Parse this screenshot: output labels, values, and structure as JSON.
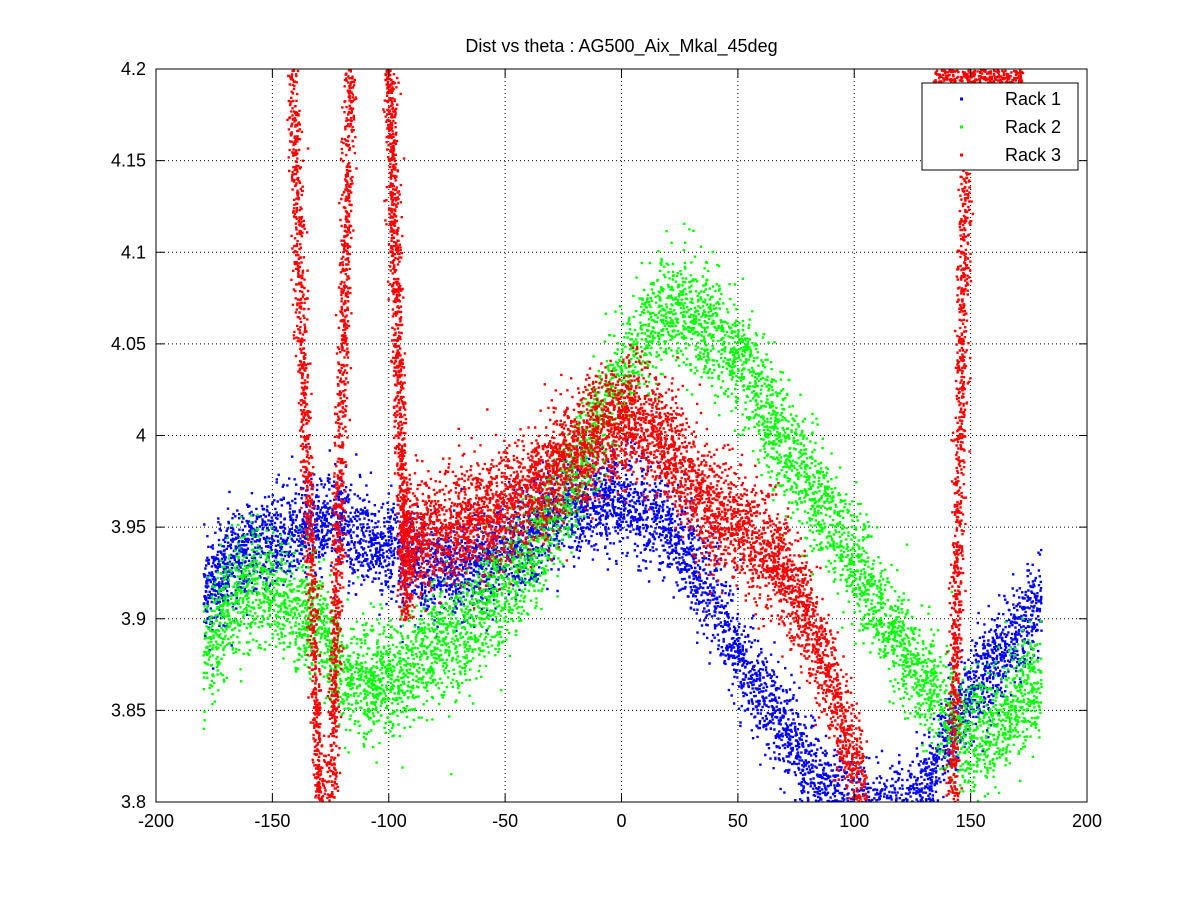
{
  "chart_data": {
    "type": "scatter",
    "title": "Dist vs theta : AG500_Aix_Mkal_45deg",
    "xlabel": "",
    "ylabel": "",
    "xlim": [
      -200,
      200
    ],
    "ylim": [
      3.8,
      4.2
    ],
    "x_ticks": [
      -200,
      -150,
      -100,
      -50,
      0,
      50,
      100,
      150,
      200
    ],
    "x_tick_labels": [
      "-200",
      "-150",
      "-100",
      "-50",
      "0",
      "50",
      "100",
      "150",
      "200"
    ],
    "y_ticks": [
      3.8,
      3.85,
      3.9,
      3.95,
      4.0,
      4.05,
      4.1,
      4.15,
      4.2
    ],
    "y_tick_labels": [
      "3.8",
      "3.85",
      "3.9",
      "3.95",
      "4",
      "4.05",
      "4.1",
      "4.15",
      "4.2"
    ],
    "grid": true,
    "grid_style": "dotted",
    "legend_position": "top-right",
    "series": [
      {
        "name": "Rack 1",
        "color": "#0000ff",
        "marker": "dot",
        "trend": {
          "x": [
            -180,
            -165,
            -150,
            -135,
            -125,
            -115,
            -100,
            -90,
            -75,
            -60,
            -45,
            -30,
            -15,
            0,
            10,
            25,
            40,
            55,
            70,
            85,
            100,
            115,
            130,
            140,
            150,
            165,
            180
          ],
          "y": [
            3.915,
            3.935,
            3.945,
            3.95,
            3.955,
            3.948,
            3.938,
            3.93,
            3.925,
            3.93,
            3.94,
            3.955,
            3.965,
            3.965,
            3.96,
            3.94,
            3.91,
            3.87,
            3.84,
            3.81,
            3.795,
            3.79,
            3.805,
            3.84,
            3.86,
            3.885,
            3.91
          ]
        },
        "spread": 0.03
      },
      {
        "name": "Rack 2",
        "color": "#00ff00",
        "marker": "dot",
        "trend": {
          "x": [
            -180,
            -170,
            -160,
            -150,
            -140,
            -130,
            -120,
            -110,
            -100,
            -90,
            -80,
            -70,
            -60,
            -50,
            -40,
            -30,
            -20,
            -10,
            0,
            10,
            20,
            30,
            40,
            50,
            60,
            70,
            80,
            90,
            100,
            110,
            120,
            130,
            140,
            150,
            160,
            170,
            180
          ],
          "y": [
            3.88,
            3.905,
            3.92,
            3.915,
            3.905,
            3.9,
            3.87,
            3.865,
            3.87,
            3.875,
            3.885,
            3.895,
            3.905,
            3.918,
            3.935,
            3.955,
            3.98,
            4.01,
            4.035,
            4.055,
            4.07,
            4.065,
            4.055,
            4.045,
            4.02,
            3.995,
            3.975,
            3.955,
            3.93,
            3.905,
            3.885,
            3.865,
            3.85,
            3.835,
            3.84,
            3.855,
            3.87
          ]
        },
        "spread": 0.035
      },
      {
        "name": "Rack 3",
        "color": "#ff0000",
        "marker": "dot",
        "trend": {
          "x": [
            -95,
            -85,
            -75,
            -65,
            -55,
            -45,
            -35,
            -25,
            -15,
            -5,
            5,
            15,
            25,
            35,
            45,
            55,
            65,
            75,
            85,
            95,
            105
          ],
          "y": [
            3.94,
            3.945,
            3.95,
            3.955,
            3.96,
            3.965,
            3.975,
            3.985,
            3.995,
            4.005,
            4.01,
            4.0,
            3.985,
            3.965,
            3.955,
            3.945,
            3.935,
            3.915,
            3.885,
            3.84,
            3.8
          ]
        },
        "spread": 0.035,
        "vertical_bands": [
          {
            "x_bottom": -130,
            "x_top": -142,
            "y_from": 3.8,
            "y_to": 4.2
          },
          {
            "x_bottom": -125,
            "x_top": -117,
            "y_from": 3.8,
            "y_to": 4.2
          },
          {
            "x_bottom": -93,
            "x_top": -100,
            "y_from": 3.9,
            "y_to": 4.2
          },
          {
            "x_bottom": 142,
            "x_top": 148,
            "y_from": 3.8,
            "y_to": 4.2
          }
        ],
        "top_cluster": {
          "x_from": 133,
          "x_to": 172,
          "y_from": 4.18,
          "y_to": 4.2
        }
      }
    ]
  }
}
